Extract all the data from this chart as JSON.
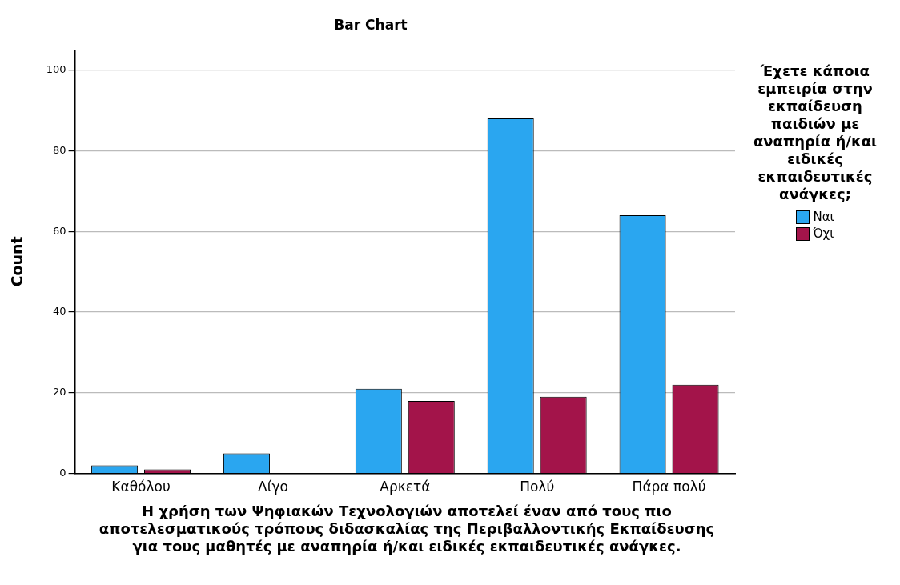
{
  "chart_data": {
    "type": "bar",
    "title": "Bar Chart",
    "xlabel": "Η χρήση των Ψηφιακών Τεχνολογιών αποτελεί έναν από τους πιο αποτελεσματικούς τρόπους διδασκαλίας της Περιβαλλοντικής Εκπαίδευσης για τους μαθητές με αναπηρία ή/και ειδικές εκπαιδευτικές ανάγκες.",
    "ylabel": "Count",
    "legend_title": "Έχετε κάποια εμπειρία στην εκπαίδευση παιδιών με αναπηρία ή/και ειδικές εκπαιδευτικές ανάγκες;",
    "categories": [
      "Καθόλου",
      "Λίγο",
      "Αρκετά",
      "Πολύ",
      "Πάρα πολύ"
    ],
    "series": [
      {
        "name": "Ναι",
        "color": "#2aa6f0",
        "values": [
          2,
          5,
          21,
          88,
          64
        ]
      },
      {
        "name": "Όχι",
        "color": "#a3144a",
        "values": [
          1,
          0,
          18,
          19,
          22
        ]
      }
    ],
    "ylim": [
      0,
      105
    ],
    "yticks": [
      0,
      20,
      40,
      60,
      80,
      100
    ],
    "grid": "y",
    "legend": "right"
  }
}
